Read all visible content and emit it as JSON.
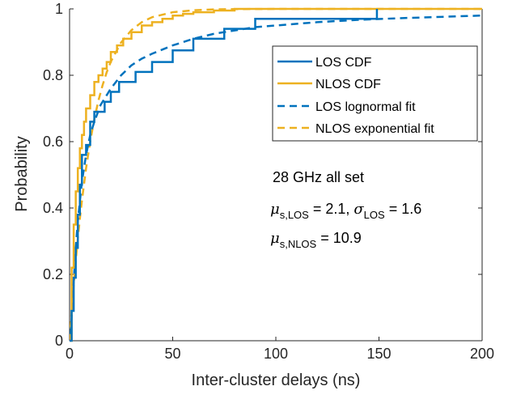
{
  "chart_data": {
    "type": "line",
    "title": "",
    "xlabel": "Inter-cluster delays (ns)",
    "ylabel": "Probability",
    "xlim": [
      0,
      200
    ],
    "ylim": [
      0,
      1
    ],
    "xticks": [
      "0",
      "50",
      "100",
      "150",
      "200"
    ],
    "yticks": [
      "0",
      "0.2",
      "0.4",
      "0.6",
      "0.8",
      "1"
    ],
    "grid": false,
    "legend_position": "top-right",
    "series": [
      {
        "name": "LOS CDF",
        "style": "solid-step",
        "color": "#0072BD",
        "x": [
          0,
          1,
          2,
          3,
          4,
          5,
          6,
          7,
          8,
          9,
          10,
          11,
          12,
          14,
          17,
          20,
          24,
          28,
          32,
          36,
          40,
          45,
          50,
          55,
          60,
          65,
          70,
          75,
          80,
          85,
          90,
          100,
          110,
          120,
          130,
          140,
          149
        ],
        "y": [
          0.0,
          0.09,
          0.19,
          0.28,
          0.38,
          0.47,
          0.56,
          0.56,
          0.59,
          0.59,
          0.66,
          0.66,
          0.69,
          0.69,
          0.72,
          0.75,
          0.78,
          0.78,
          0.81,
          0.81,
          0.84,
          0.84,
          0.875,
          0.875,
          0.91,
          0.91,
          0.91,
          0.94,
          0.94,
          0.94,
          0.97,
          0.97,
          0.97,
          0.97,
          0.97,
          0.97,
          1.0
        ]
      },
      {
        "name": "NLOS CDF",
        "style": "solid-step",
        "color": "#EDB120",
        "x": [
          0,
          1,
          2,
          3,
          4,
          5,
          6,
          7,
          8,
          10,
          12,
          14,
          16,
          18,
          20,
          23,
          26,
          30,
          35,
          40,
          45,
          50,
          55,
          60,
          70,
          80,
          90,
          100,
          150,
          200
        ],
        "y": [
          0.0,
          0.22,
          0.35,
          0.45,
          0.52,
          0.58,
          0.62,
          0.66,
          0.7,
          0.74,
          0.78,
          0.8,
          0.82,
          0.84,
          0.87,
          0.89,
          0.91,
          0.93,
          0.95,
          0.96,
          0.97,
          0.98,
          0.985,
          0.99,
          0.995,
          1.0,
          1.0,
          1.0,
          1.0,
          1.0
        ]
      },
      {
        "name": "LOS lognormal fit",
        "style": "dashed",
        "color": "#0072BD",
        "x": [
          0.5,
          1,
          2,
          3,
          4,
          5,
          6,
          8,
          10,
          12,
          15,
          18,
          20,
          25,
          30,
          35,
          40,
          50,
          60,
          70,
          80,
          90,
          100,
          120,
          140,
          160,
          180,
          200
        ],
        "y": [
          0.02,
          0.07,
          0.18,
          0.28,
          0.36,
          0.42,
          0.48,
          0.56,
          0.62,
          0.66,
          0.71,
          0.74,
          0.76,
          0.8,
          0.83,
          0.85,
          0.865,
          0.89,
          0.91,
          0.925,
          0.935,
          0.945,
          0.95,
          0.96,
          0.967,
          0.972,
          0.976,
          0.98
        ]
      },
      {
        "name": "NLOS exponential fit",
        "style": "dashed",
        "color": "#EDB120",
        "x": [
          0,
          1,
          2,
          3,
          4,
          5,
          6,
          8,
          10,
          12,
          14,
          16,
          18,
          20,
          25,
          30,
          35,
          40,
          50,
          60,
          70,
          80,
          100,
          150,
          200
        ],
        "y": [
          0.0,
          0.088,
          0.168,
          0.241,
          0.307,
          0.368,
          0.423,
          0.52,
          0.6,
          0.668,
          0.724,
          0.77,
          0.809,
          0.841,
          0.899,
          0.936,
          0.96,
          0.975,
          0.99,
          0.996,
          0.9984,
          0.9994,
          0.9999,
          1.0,
          1.0
        ]
      }
    ],
    "annotations": {
      "line1": "28 GHz all set",
      "mu": "μ",
      "mu_sub_los": "s,LOS",
      "mu_los_value": " = 2.1, ",
      "sigma": "σ",
      "sigma_sub": "LOS",
      "sigma_value": " = 1.6",
      "mu_sub_nlos": "s,NLOS",
      "mu_nlos_value": " = 10.9"
    }
  }
}
